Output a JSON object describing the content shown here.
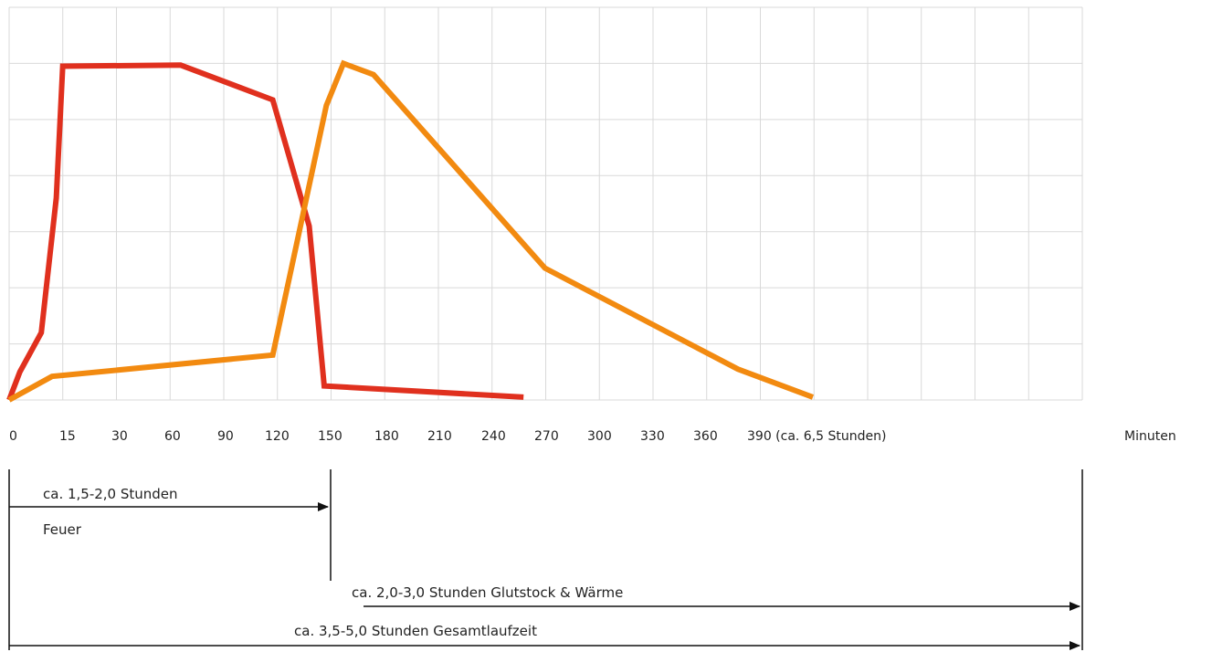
{
  "chart_data": {
    "type": "line",
    "title": "",
    "xlabel": "Minuten",
    "ylabel": "",
    "grid": true,
    "x_tick_labels": [
      "0",
      "15",
      "30",
      "60",
      "90",
      "120",
      "150",
      "180",
      "210",
      "240",
      "270",
      "300",
      "330",
      "360",
      "390 (ca. 6,5 Stunden)"
    ],
    "series": [
      {
        "color": "#e0301e",
        "points": [
          {
            "x": 0,
            "y": 0
          },
          {
            "x": 5,
            "y": 0.5
          },
          {
            "x": 15,
            "y": 1.2
          },
          {
            "x": 22,
            "y": 3.6
          },
          {
            "x": 25,
            "y": 5.95
          },
          {
            "x": 80,
            "y": 5.97
          },
          {
            "x": 123,
            "y": 5.35
          },
          {
            "x": 140,
            "y": 3.1
          },
          {
            "x": 147,
            "y": 0.25
          },
          {
            "x": 240,
            "y": 0.05
          }
        ]
      },
      {
        "color": "#f28a10",
        "points": [
          {
            "x": 0,
            "y": 0
          },
          {
            "x": 20,
            "y": 0.42
          },
          {
            "x": 123,
            "y": 0.8
          },
          {
            "x": 148,
            "y": 5.25
          },
          {
            "x": 156,
            "y": 6.0
          },
          {
            "x": 170,
            "y": 5.8
          },
          {
            "x": 250,
            "y": 2.35
          },
          {
            "x": 340,
            "y": 0.55
          },
          {
            "x": 375,
            "y": 0.05
          }
        ]
      }
    ]
  },
  "annotations": {
    "fire_duration": "ca. 1,5-2,0 Stunden",
    "fire_label": "Feuer",
    "ember_label": "ca. 2,0-3,0 Stunden Glutstock & Wärme",
    "total_label": "ca. 3,5-5,0 Stunden Gesamtlaufzeit"
  }
}
